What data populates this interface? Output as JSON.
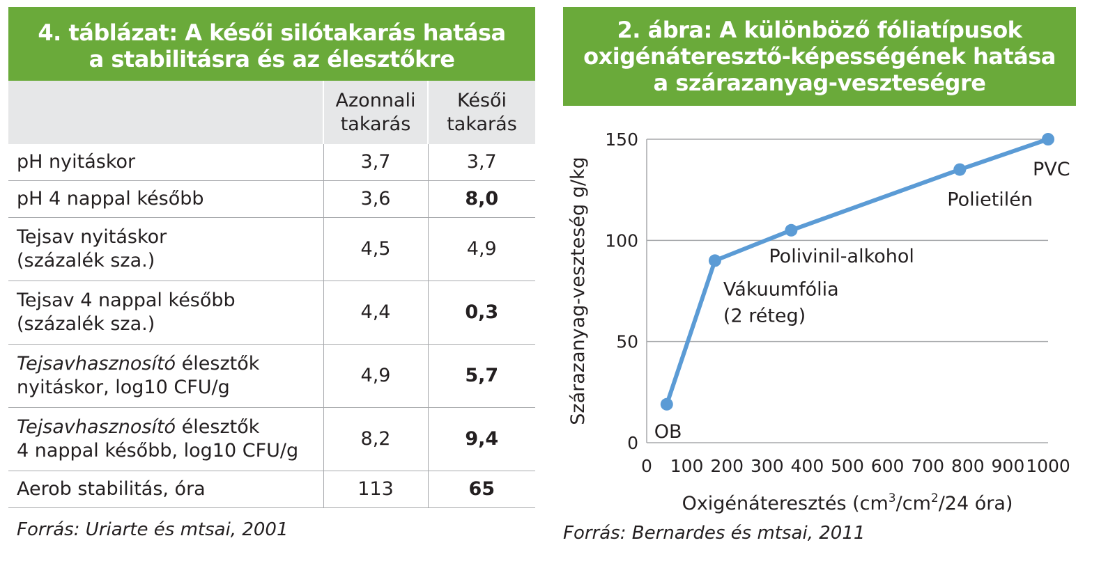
{
  "table": {
    "title_lines": [
      "4. táblázat: A késői silótakarás hatása",
      "a stabilitásra és az élesztőkre"
    ],
    "headers": [
      "",
      "Azonnali takarás",
      "Késői takarás"
    ],
    "rows": [
      {
        "label_italic": "",
        "label": "pH nyitáskor",
        "label2": "",
        "immediate": "3,7",
        "late": "3,7",
        "late_bold": false
      },
      {
        "label_italic": "",
        "label": "pH 4 nappal később",
        "label2": "",
        "immediate": "3,6",
        "late": "8,0",
        "late_bold": true
      },
      {
        "label_italic": "",
        "label": "Tejsav nyitáskor",
        "label2": "(százalék sza.)",
        "immediate": "4,5",
        "late": "4,9",
        "late_bold": false
      },
      {
        "label_italic": "",
        "label": "Tejsav 4 nappal később",
        "label2": "(százalék sza.)",
        "immediate": "4,4",
        "late": "0,3",
        "late_bold": true
      },
      {
        "label_italic": "Tejsavhasznosító",
        "label": " élesztők",
        "label2": "nyitáskor, log10 CFU/g",
        "immediate": "4,9",
        "late": "5,7",
        "late_bold": true
      },
      {
        "label_italic": "Tejsavhasznosító",
        "label": " élesztők",
        "label2": "4 nappal később, log10 CFU/g",
        "immediate": "8,2",
        "late": "9,4",
        "late_bold": true
      },
      {
        "label_italic": "",
        "label": "Aerob stabilitás, óra",
        "label2": "",
        "immediate": "113",
        "late": "65",
        "late_bold": true
      }
    ],
    "source": "Forrás: Uriarte és mtsai, 2001"
  },
  "chart": {
    "title_lines": [
      "2. ábra: A különböző fóliatípusok",
      "oxigénáteresztő-képességének hatása",
      "a szárazanyag-veszteségre"
    ],
    "source": "Forrás: Bernardes és mtsai, 2011"
  },
  "chart_data": {
    "type": "line",
    "title": "2. ábra: A különböző fóliatípusok oxigénáteresztő-képességének hatása a szárazanyag-veszteségre",
    "xlabel": "Oxigénáteresztés (cm³/cm²/24 óra)",
    "xlabel_parts": [
      "Oxigénáteresztés (cm",
      "3",
      "/cm",
      "2",
      "/24 óra)"
    ],
    "ylabel": "Szárazanyag-veszteség g/kg",
    "xlim": [
      0,
      1000
    ],
    "ylim": [
      0,
      150
    ],
    "x_ticks": [
      0,
      100,
      200,
      300,
      400,
      500,
      600,
      700,
      800,
      900,
      1000
    ],
    "y_ticks": [
      0,
      50,
      100,
      150
    ],
    "grid": "horizontal",
    "line_color": "#5b9bd5",
    "points": [
      {
        "x": 50,
        "y": 19,
        "label": [
          "OB"
        ]
      },
      {
        "x": 170,
        "y": 90,
        "label": [
          "Vákuumfólia",
          "(2 réteg)"
        ]
      },
      {
        "x": 360,
        "y": 105,
        "label": [
          "Polivinil-alkohol"
        ]
      },
      {
        "x": 780,
        "y": 135,
        "label": [
          "Polietilén"
        ]
      },
      {
        "x": 1000,
        "y": 150,
        "label": [
          "PVC"
        ]
      }
    ]
  }
}
